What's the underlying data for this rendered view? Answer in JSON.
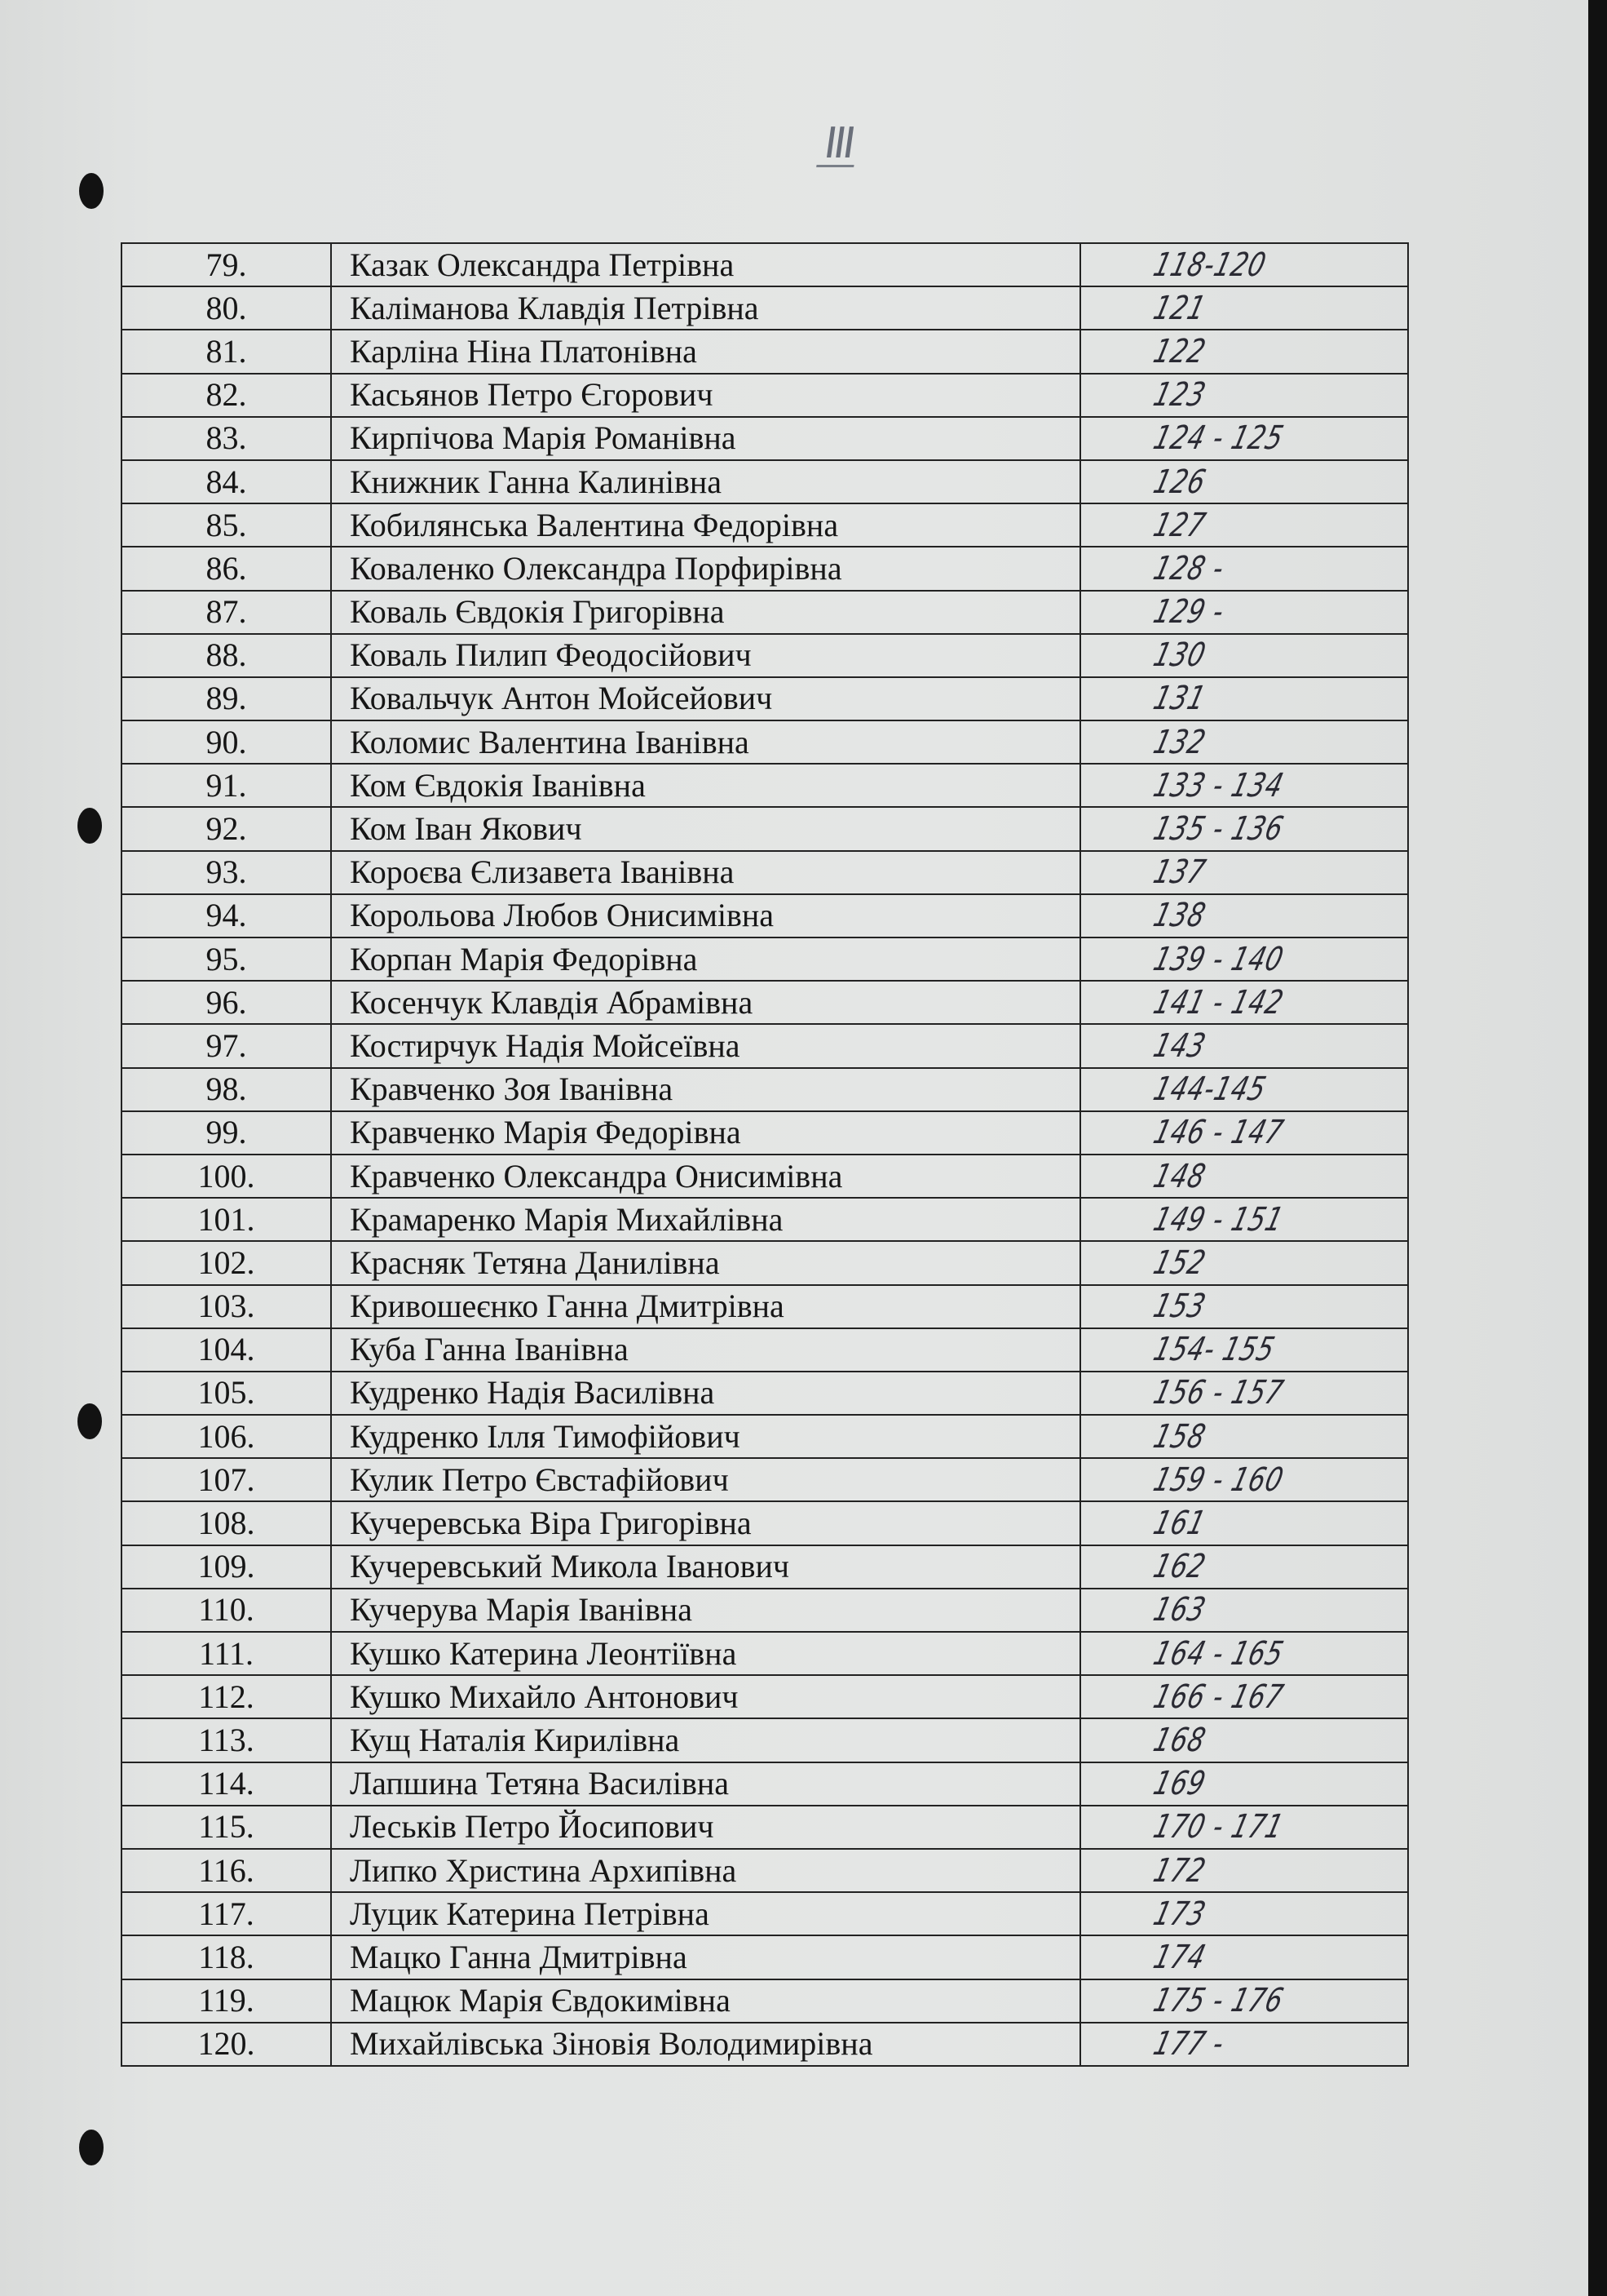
{
  "page_mark": "III",
  "rows": [
    {
      "num": "79.",
      "name": "Казак Олександра Петрівна",
      "pages": "118-120"
    },
    {
      "num": "80.",
      "name": "Каліманова Клавдія Петрівна",
      "pages": "121"
    },
    {
      "num": "81.",
      "name": "Карліна Ніна Платонівна",
      "pages": "122"
    },
    {
      "num": "82.",
      "name": "Касьянов Петро Єгорович",
      "pages": "123"
    },
    {
      "num": "83.",
      "name": "Кирпічова Марія Романівна",
      "pages": "124 - 125"
    },
    {
      "num": "84.",
      "name": "Книжник Ганна Калинівна",
      "pages": "126"
    },
    {
      "num": "85.",
      "name": "Кобилянська Валентина Федорівна",
      "pages": "127"
    },
    {
      "num": "86.",
      "name": "Коваленко Олександра Порфирівна",
      "pages": "128 -"
    },
    {
      "num": "87.",
      "name": "Коваль Євдокія Григорівна",
      "pages": "129 -"
    },
    {
      "num": "88.",
      "name": "Коваль Пилип Феодосійович",
      "pages": "130"
    },
    {
      "num": "89.",
      "name": "Ковальчук Антон Мойсейович",
      "pages": "131"
    },
    {
      "num": "90.",
      "name": "Коломис Валентина Іванівна",
      "pages": "132"
    },
    {
      "num": "91.",
      "name": "Ком Євдокія Іванівна",
      "pages": "133 - 134"
    },
    {
      "num": "92.",
      "name": "Ком Іван Якович",
      "pages": "135 - 136"
    },
    {
      "num": "93.",
      "name": "Короєва Єлизавета Іванівна",
      "pages": "137"
    },
    {
      "num": "94.",
      "name": "Корольова Любов Онисимівна",
      "pages": "138"
    },
    {
      "num": "95.",
      "name": "Корпан Марія Федорівна",
      "pages": "139 - 140"
    },
    {
      "num": "96.",
      "name": "Косенчук Клавдія Абрамівна",
      "pages": "141 - 142"
    },
    {
      "num": "97.",
      "name": "Костирчук Надія Мойсеївна",
      "pages": "143"
    },
    {
      "num": "98.",
      "name": "Кравченко Зоя Іванівна",
      "pages": "144-145"
    },
    {
      "num": "99.",
      "name": "Кравченко Марія Федорівна",
      "pages": "146 - 147"
    },
    {
      "num": "100.",
      "name": "Кравченко Олександра Онисимівна",
      "pages": "148"
    },
    {
      "num": "101.",
      "name": "Крамаренко Марія Михайлівна",
      "pages": "149 - 151"
    },
    {
      "num": "102.",
      "name": "Красняк Тетяна Данилівна",
      "pages": "152"
    },
    {
      "num": "103.",
      "name": "Кривошеєнко Ганна Дмитрівна",
      "pages": "153"
    },
    {
      "num": "104.",
      "name": "Куба Ганна Іванівна",
      "pages": "154- 155"
    },
    {
      "num": "105.",
      "name": "Кудренко Надія Василівна",
      "pages": "156 - 157"
    },
    {
      "num": "106.",
      "name": "Кудренко Ілля Тимофійович",
      "pages": "158"
    },
    {
      "num": "107.",
      "name": "Кулик Петро Євстафійович",
      "pages": "159 - 160"
    },
    {
      "num": "108.",
      "name": "Кучеревська Віра Григорівна",
      "pages": "161"
    },
    {
      "num": "109.",
      "name": "Кучеревський Микола Іванович",
      "pages": "162"
    },
    {
      "num": "110.",
      "name": "Кучерува Марія Іванівна",
      "pages": "163"
    },
    {
      "num": "111.",
      "name": "Кушко Катерина Леонтіївна",
      "pages": "164 - 165"
    },
    {
      "num": "112.",
      "name": "Кушко Михайло Антонович",
      "pages": "166 - 167"
    },
    {
      "num": "113.",
      "name": "Кущ Наталія Кирилівна",
      "pages": "168"
    },
    {
      "num": "114.",
      "name": "Лапшина Тетяна Василівна",
      "pages": "169"
    },
    {
      "num": "115.",
      "name": "Леськів Петро Йосипович",
      "pages": "170 - 171"
    },
    {
      "num": "116.",
      "name": "Липко Христина Архипівна",
      "pages": "172"
    },
    {
      "num": "117.",
      "name": "Луцик Катерина Петрівна",
      "pages": "173"
    },
    {
      "num": "118.",
      "name": "Мацко Ганна Дмитрівна",
      "pages": "174"
    },
    {
      "num": "119.",
      "name": "Мацюк Марія Євдокимівна",
      "pages": "175 - 176"
    },
    {
      "num": "120.",
      "name": "Михайлівська Зіновія Володимирівна",
      "pages": "177 -"
    }
  ]
}
